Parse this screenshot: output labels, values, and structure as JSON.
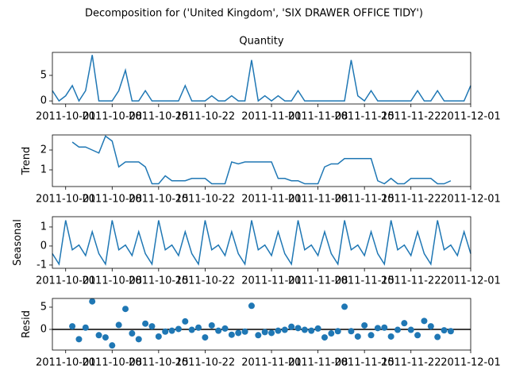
{
  "chart_data": {
    "title": "Decomposition for ('United Kingdom', 'SIX DRAWER OFFICE TIDY')",
    "x": [
      "2011-09-29",
      "2011-09-30",
      "2011-10-01",
      "2011-10-02",
      "2011-10-03",
      "2011-10-04",
      "2011-10-05",
      "2011-10-06",
      "2011-10-07",
      "2011-10-08",
      "2011-10-09",
      "2011-10-10",
      "2011-10-11",
      "2011-10-12",
      "2011-10-13",
      "2011-10-14",
      "2011-10-15",
      "2011-10-16",
      "2011-10-17",
      "2011-10-18",
      "2011-10-19",
      "2011-10-20",
      "2011-10-21",
      "2011-10-22",
      "2011-10-23",
      "2011-10-24",
      "2011-10-25",
      "2011-10-26",
      "2011-10-27",
      "2011-10-28",
      "2011-10-29",
      "2011-10-30",
      "2011-10-31",
      "2011-11-01",
      "2011-11-02",
      "2011-11-03",
      "2011-11-04",
      "2011-11-05",
      "2011-11-06",
      "2011-11-07",
      "2011-11-08",
      "2011-11-09",
      "2011-11-10",
      "2011-11-11",
      "2011-11-12",
      "2011-11-13",
      "2011-11-14",
      "2011-11-15",
      "2011-11-16",
      "2011-11-17",
      "2011-11-18",
      "2011-11-19",
      "2011-11-20",
      "2011-11-21",
      "2011-11-22",
      "2011-11-23",
      "2011-11-24",
      "2011-11-25",
      "2011-11-26",
      "2011-11-27",
      "2011-11-28",
      "2011-11-29",
      "2011-11-30",
      "2011-12-01"
    ],
    "xlim": [
      "2011-09-29",
      "2011-12-01"
    ],
    "xticks": [
      "2011-10-01",
      "2011-10-08",
      "2011-10-15",
      "2011-10-22",
      "2011-11-01",
      "2011-11-08",
      "2011-11-15",
      "2011-11-22",
      "2011-12-01"
    ],
    "panels": [
      {
        "type": "line",
        "title": "Quantity",
        "color": "#1f77b4",
        "values": [
          2,
          0,
          1,
          3,
          0,
          2,
          9,
          0,
          0,
          0,
          2,
          6,
          0,
          0,
          2,
          0,
          0,
          0,
          0,
          0,
          3,
          0,
          0,
          0,
          1,
          0,
          0,
          1,
          0,
          0,
          8,
          0,
          1,
          0,
          1,
          0,
          0,
          2,
          0,
          0,
          0,
          0,
          0,
          0,
          0,
          8,
          1,
          0,
          2,
          0,
          0,
          0,
          0,
          0,
          0,
          2,
          0,
          0,
          2,
          0,
          0,
          0,
          0,
          3
        ],
        "ylim": [
          -0.6,
          9.5
        ],
        "yticks": [
          0,
          5
        ]
      },
      {
        "type": "line",
        "ylabel": "Trend",
        "color": "#1f77b4",
        "values": [
          null,
          null,
          null,
          2.4,
          2.15,
          2.15,
          2.0,
          1.85,
          2.7,
          2.45,
          1.15,
          1.4,
          1.4,
          1.4,
          1.15,
          0.3,
          0.3,
          0.7,
          0.45,
          0.45,
          0.45,
          0.57,
          0.57,
          0.57,
          0.3,
          0.3,
          0.3,
          1.4,
          1.3,
          1.4,
          1.4,
          1.4,
          1.4,
          1.4,
          0.57,
          0.57,
          0.45,
          0.45,
          0.3,
          0.3,
          0.3,
          1.15,
          1.3,
          1.3,
          1.57,
          1.57,
          1.57,
          1.57,
          1.57,
          0.45,
          0.3,
          0.57,
          0.3,
          0.3,
          0.57,
          0.57,
          0.57,
          0.57,
          0.3,
          0.3,
          0.45,
          null,
          null,
          null
        ],
        "ylim": [
          0.16,
          2.76
        ],
        "yticks": [
          1,
          2
        ]
      },
      {
        "type": "line",
        "ylabel": "Seasonal",
        "color": "#1f77b4",
        "values": [
          -0.4,
          -0.95,
          1.35,
          -0.2,
          0.05,
          -0.5,
          0.75,
          -0.4,
          -0.95,
          1.35,
          -0.2,
          0.05,
          -0.5,
          0.75,
          -0.4,
          -0.95,
          1.35,
          -0.2,
          0.05,
          -0.5,
          0.75,
          -0.4,
          -0.95,
          1.35,
          -0.2,
          0.05,
          -0.5,
          0.75,
          -0.4,
          -0.95,
          1.35,
          -0.2,
          0.05,
          -0.5,
          0.75,
          -0.4,
          -0.95,
          1.35,
          -0.2,
          0.05,
          -0.5,
          0.75,
          -0.4,
          -0.95,
          1.35,
          -0.2,
          0.05,
          -0.5,
          0.75,
          -0.4,
          -0.95,
          1.35,
          -0.2,
          0.05,
          -0.5,
          0.75,
          -0.4,
          -0.95,
          1.35,
          -0.2,
          0.05,
          -0.5,
          0.75,
          -0.4
        ],
        "ylim": [
          -1.17,
          1.54
        ],
        "yticks": [
          -1,
          0,
          1
        ]
      },
      {
        "type": "scatter",
        "ylabel": "Resid",
        "color": "#1f77b4",
        "zero_line": true,
        "values": [
          null,
          null,
          null,
          0.7,
          -2.2,
          0.4,
          6.3,
          -1.3,
          -1.8,
          -3.6,
          1.0,
          4.6,
          -0.9,
          -2.2,
          1.3,
          0.7,
          -1.6,
          -0.5,
          -0.3,
          0.1,
          1.8,
          -0.1,
          0.4,
          -1.8,
          0.9,
          -0.3,
          0.2,
          -1.2,
          -0.8,
          -0.5,
          5.3,
          -1.3,
          -0.6,
          -0.8,
          -0.3,
          -0.1,
          0.6,
          0.3,
          -0.1,
          -0.3,
          0.2,
          -1.8,
          -0.9,
          -0.4,
          5.1,
          -0.4,
          -1.6,
          0.9,
          -1.3,
          0.3,
          0.4,
          -1.6,
          -0.1,
          1.4,
          -0.1,
          -1.3,
          1.9,
          0.7,
          -1.7,
          -0.2,
          -0.4,
          null,
          null,
          null
        ],
        "ylim": [
          -4.64,
          6.96
        ],
        "yticks": [
          0,
          5
        ]
      }
    ]
  }
}
